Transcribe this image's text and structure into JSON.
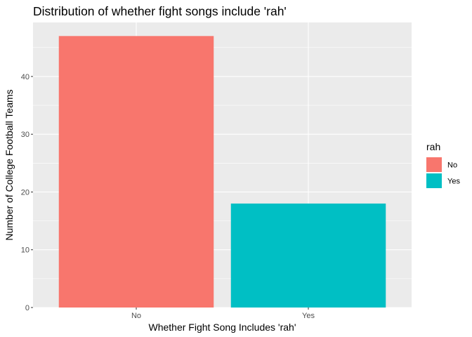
{
  "chart_data": {
    "type": "bar",
    "title": "Distribution of whether fight songs include 'rah'",
    "xlabel": "Whether Fight Song Includes 'rah'",
    "ylabel": "Number of College Football Teams",
    "categories": [
      "No",
      "Yes"
    ],
    "values": [
      47,
      18
    ],
    "colors": [
      "#f8766d",
      "#00bfc4"
    ],
    "ylim": [
      0,
      49.35
    ],
    "yticks": [
      0,
      10,
      20,
      30,
      40
    ],
    "grid": true,
    "legend": {
      "title": "rah",
      "position": "right",
      "entries": [
        {
          "label": "No",
          "color": "#f8766d"
        },
        {
          "label": "Yes",
          "color": "#00bfc4"
        }
      ]
    },
    "style": {
      "panel_background": "#ebebeb",
      "grid_color": "#ffffff"
    }
  }
}
